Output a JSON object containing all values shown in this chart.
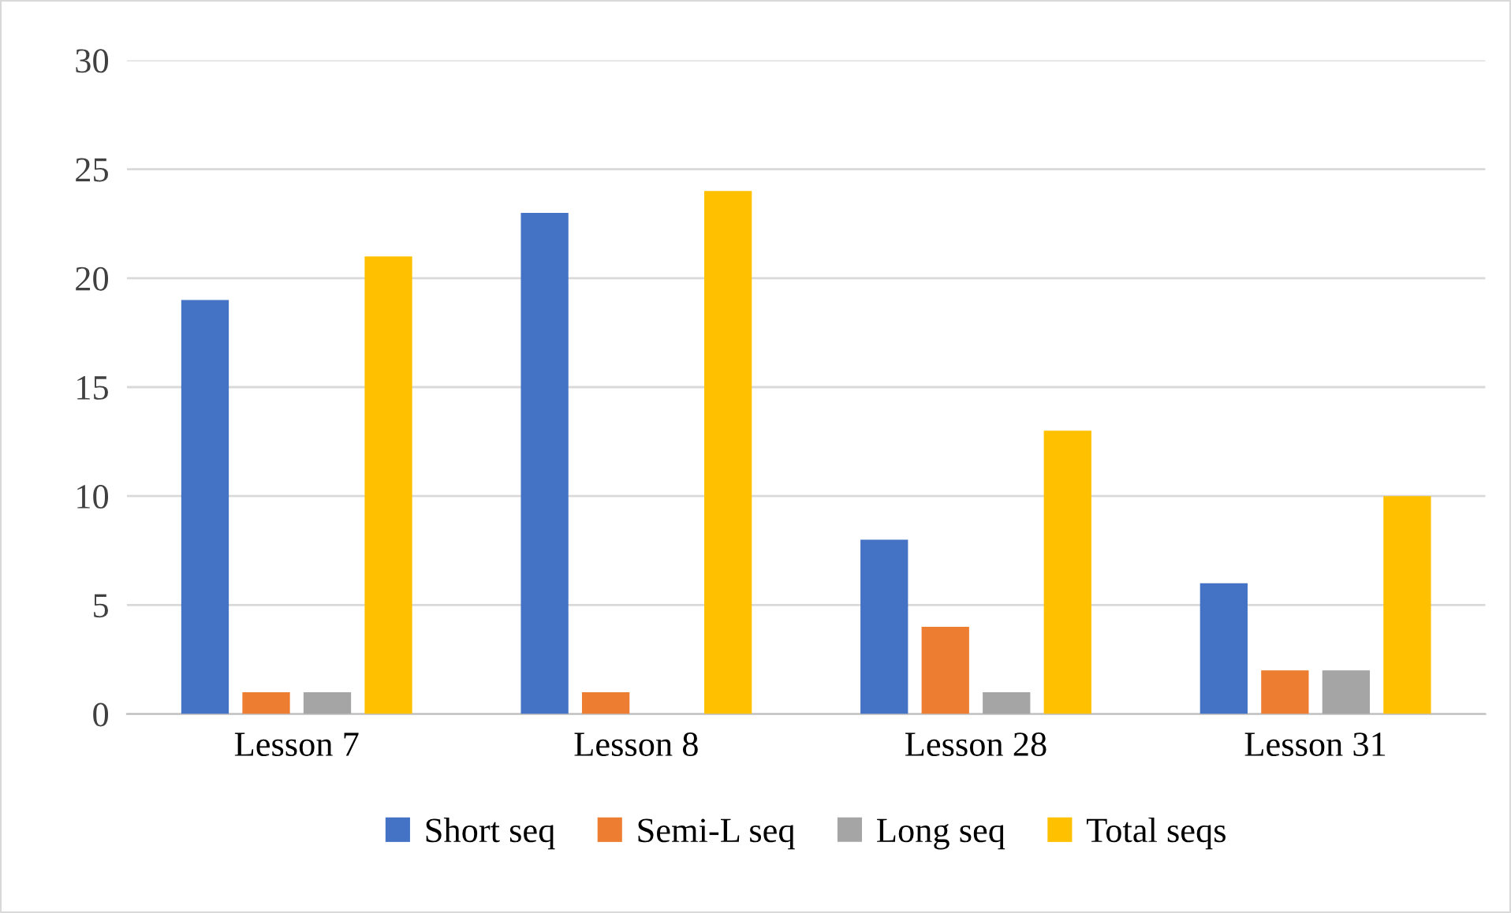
{
  "chart_data": {
    "type": "bar",
    "categories": [
      "Lesson 7",
      "Lesson 8",
      "Lesson 28",
      "Lesson 31"
    ],
    "series": [
      {
        "name": "Short seq",
        "color": "#4472c4",
        "values": [
          19,
          23,
          8,
          6
        ]
      },
      {
        "name": "Semi-L seq",
        "color": "#ed7d31",
        "values": [
          1,
          1,
          4,
          2
        ]
      },
      {
        "name": "Long seq",
        "color": "#a5a5a5",
        "values": [
          1,
          0,
          1,
          2
        ]
      },
      {
        "name": "Total seqs",
        "color": "#ffc000",
        "values": [
          21,
          24,
          13,
          10
        ]
      }
    ],
    "ylim": [
      0,
      30
    ],
    "yticks": [
      0,
      5,
      10,
      15,
      20,
      25,
      30
    ],
    "grid": "y",
    "legend": "bottom"
  }
}
